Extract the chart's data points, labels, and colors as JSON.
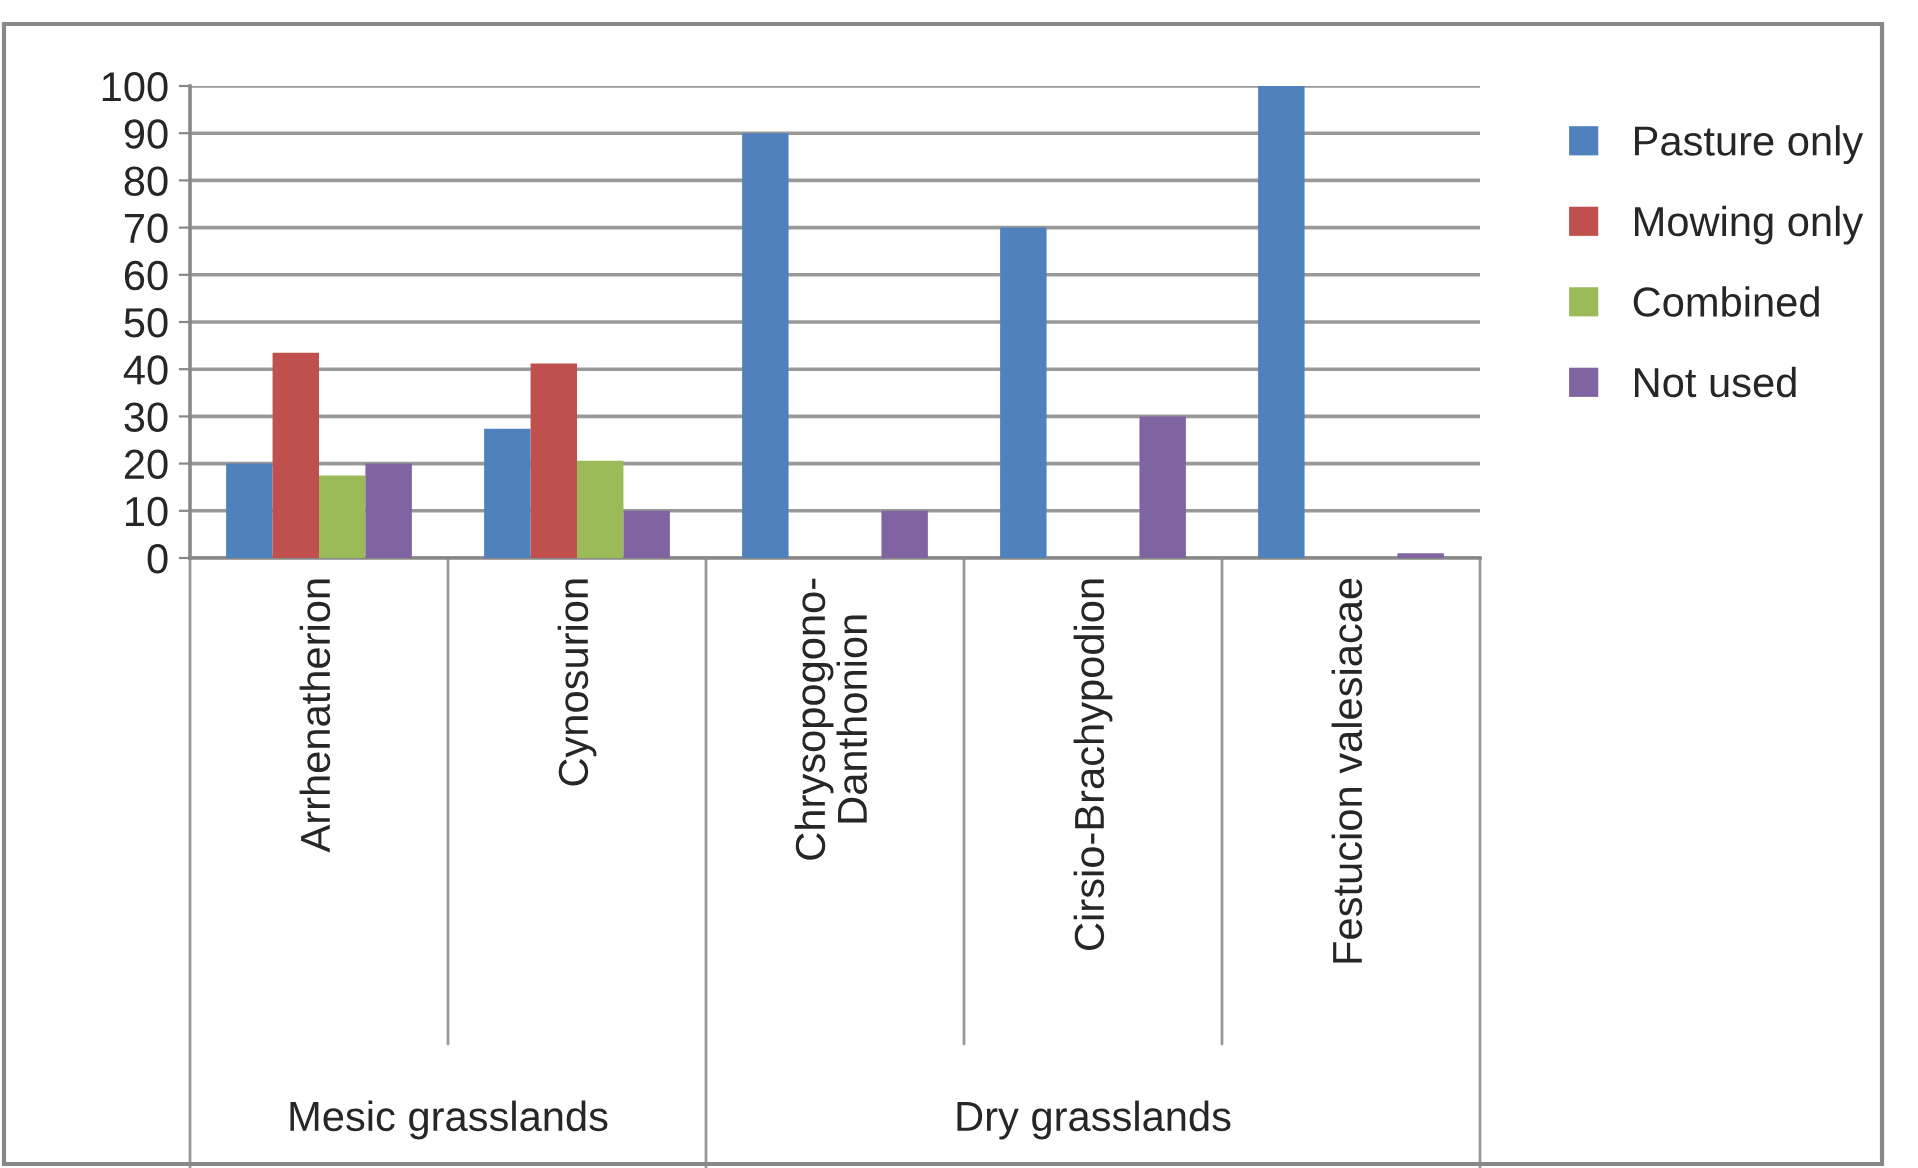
{
  "chart_data": {
    "type": "bar",
    "categories": [
      "Arrhenatherion",
      "Cynosurion",
      "Chrysopogono-\nDanthonion",
      "Cirsio-Brachypodion",
      "Festucion valesiacae"
    ],
    "series": [
      {
        "name": "Pasture only",
        "color": "#4f81bd",
        "values": [
          20,
          27.4,
          90,
          70,
          100
        ]
      },
      {
        "name": "Mowing only",
        "color": "#c0504d",
        "values": [
          43.5,
          41.2,
          0,
          0,
          0
        ]
      },
      {
        "name": "Combined",
        "color": "#9bbb59",
        "values": [
          17.5,
          20.6,
          0,
          0,
          0
        ]
      },
      {
        "name": "Not used",
        "color": "#8064a2",
        "values": [
          20,
          10,
          10,
          30,
          1
        ]
      }
    ],
    "annotations": [
      "Mesic grasslands",
      "Dry grasslands"
    ],
    "ylim": [
      0,
      100
    ],
    "yticks": [
      0,
      10,
      20,
      30,
      40,
      50,
      60,
      70,
      80,
      90,
      100
    ],
    "grid": "y",
    "legend": "right"
  }
}
